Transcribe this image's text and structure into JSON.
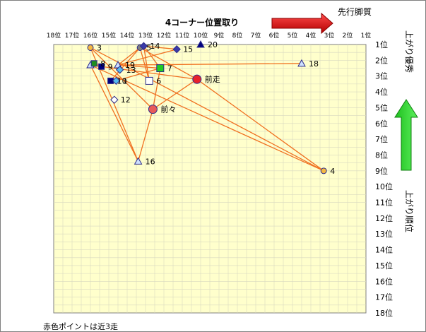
{
  "chart_data": {
    "type": "scatter",
    "title": "4コーナー位置取り",
    "right_arrow_label": "先行脚質",
    "up_arrow_label": "上がり優秀",
    "ylabel": "上がり順位",
    "footnote": "赤色ポイントは近3走",
    "x_ticks": [
      "18位",
      "17位",
      "16位",
      "15位",
      "14位",
      "13位",
      "12位",
      "11位",
      "10位",
      "9位",
      "8位",
      "7位",
      "6位",
      "5位",
      "4位",
      "3位",
      "2位",
      "1位"
    ],
    "y_ticks": [
      "1位",
      "2位",
      "3位",
      "4位",
      "5位",
      "6位",
      "7位",
      "8位",
      "9位",
      "10位",
      "11位",
      "12位",
      "13位",
      "14位",
      "15位",
      "16位",
      "17位",
      "18位"
    ],
    "xlim": [
      18,
      1
    ],
    "ylim": [
      1,
      18
    ],
    "grid": true,
    "points": [
      {
        "label": "3",
        "x": 16.0,
        "y": 1.2,
        "marker": "circle",
        "fill": "#f5b942",
        "size": 4
      },
      {
        "label": "5",
        "x": 13.3,
        "y": 1.2,
        "marker": "circle",
        "fill": "#7f7f7f",
        "size": 4
      },
      {
        "label": "14",
        "x": 13.1,
        "y": 1.1,
        "marker": "diamond",
        "fill": "#3a3aa8",
        "size": 4
      },
      {
        "label": "15",
        "x": 11.3,
        "y": 1.3,
        "marker": "diamond",
        "fill": "#3a3aa8",
        "size": 4
      },
      {
        "label": "20",
        "x": 10.0,
        "y": 1.0,
        "marker": "triangle",
        "fill": "#000080",
        "size": 5
      },
      {
        "label": "18",
        "x": 4.5,
        "y": 2.2,
        "marker": "triangle",
        "fill": "#cfe1ff",
        "size": 5
      },
      {
        "label": "8",
        "x": 15.8,
        "y": 2.2,
        "marker": "square",
        "fill": "#1f8f1f",
        "size": 4
      },
      {
        "label": "9",
        "x": 15.4,
        "y": 2.4,
        "marker": "square",
        "fill": "#000080",
        "size": 4
      },
      {
        "label": "19",
        "x": 14.5,
        "y": 2.3,
        "marker": "triangle",
        "fill": "#cfe1ff",
        "size": 5
      },
      {
        "label": "13",
        "x": 14.4,
        "y": 2.6,
        "marker": "diamond",
        "fill": "#55bbee",
        "size": 4
      },
      {
        "label": "7",
        "x": 12.2,
        "y": 2.5,
        "marker": "square",
        "fill": "#22cc22",
        "size": 5
      },
      {
        "label": "10",
        "x": 14.9,
        "y": 3.3,
        "marker": "square",
        "fill": "#000080",
        "size": 4
      },
      {
        "label": "1",
        "x": 14.6,
        "y": 3.3,
        "marker": "diamond",
        "fill": "#55bbee",
        "size": 4
      },
      {
        "label": "6",
        "x": 12.8,
        "y": 3.3,
        "marker": "square",
        "fill": "#ffffff",
        "size": 5
      },
      {
        "label": "前走",
        "x": 10.2,
        "y": 3.2,
        "marker": "circle",
        "fill": "#e8232b",
        "size": 6
      },
      {
        "label": "12",
        "x": 14.7,
        "y": 4.5,
        "marker": "diamond",
        "fill": "#ffffff",
        "size": 4
      },
      {
        "label": "前々",
        "x": 12.6,
        "y": 5.1,
        "marker": "circle",
        "fill": "#e85a5a",
        "size": 6
      },
      {
        "label": "4",
        "x": 3.3,
        "y": 9.0,
        "marker": "circle",
        "fill": "#f5b942",
        "size": 4
      },
      {
        "label": "16",
        "x": 13.4,
        "y": 8.4,
        "marker": "triangle",
        "fill": "#cfe1ff",
        "size": 5
      }
    ],
    "extra_markers": [
      {
        "x": 16.0,
        "y": 2.3,
        "marker": "triangle",
        "fill": "#cfe1ff",
        "size": 5
      }
    ],
    "lines_color": "#f07020",
    "lines": [
      [
        [
          16.0,
          1.2
        ],
        [
          12.6,
          5.1
        ]
      ],
      [
        [
          16.0,
          1.2
        ],
        [
          3.3,
          9.0
        ]
      ],
      [
        [
          16.0,
          1.2
        ],
        [
          13.4,
          8.4
        ]
      ],
      [
        [
          16.0,
          2.3
        ],
        [
          10.2,
          3.2
        ]
      ],
      [
        [
          16.0,
          2.3
        ],
        [
          13.4,
          8.4
        ]
      ],
      [
        [
          16.0,
          2.3
        ],
        [
          3.3,
          9.0
        ]
      ],
      [
        [
          13.1,
          1.1
        ],
        [
          11.3,
          1.3
        ]
      ],
      [
        [
          13.1,
          1.1
        ],
        [
          12.2,
          2.5
        ]
      ],
      [
        [
          13.1,
          1.1
        ],
        [
          12.8,
          3.3
        ]
      ],
      [
        [
          13.3,
          1.2
        ],
        [
          12.8,
          3.3
        ]
      ],
      [
        [
          13.3,
          1.2
        ],
        [
          14.9,
          3.3
        ]
      ],
      [
        [
          13.3,
          1.2
        ],
        [
          10.2,
          3.2
        ]
      ],
      [
        [
          14.5,
          2.3
        ],
        [
          4.5,
          2.2
        ]
      ],
      [
        [
          14.5,
          2.3
        ],
        [
          12.2,
          2.5
        ]
      ],
      [
        [
          14.5,
          2.3
        ],
        [
          11.3,
          1.3
        ]
      ],
      [
        [
          14.5,
          2.3
        ],
        [
          13.3,
          1.2
        ]
      ],
      [
        [
          14.6,
          3.3
        ],
        [
          12.2,
          2.5
        ]
      ],
      [
        [
          12.2,
          2.5
        ],
        [
          12.6,
          5.1
        ]
      ],
      [
        [
          12.6,
          5.1
        ],
        [
          10.2,
          3.2
        ]
      ],
      [
        [
          10.2,
          3.2
        ],
        [
          3.3,
          9.0
        ]
      ],
      [
        [
          12.6,
          5.1
        ],
        [
          13.4,
          8.4
        ]
      ]
    ]
  }
}
